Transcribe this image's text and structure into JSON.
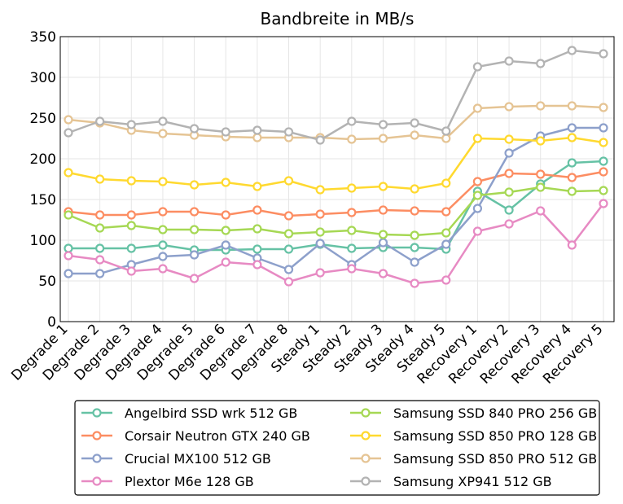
{
  "chart_data": {
    "type": "line",
    "title": "Bandbreite in MB/s",
    "xlabel": "",
    "ylabel": "",
    "ylim": [
      0,
      350
    ],
    "yticks": [
      0,
      50,
      100,
      150,
      200,
      250,
      300,
      350
    ],
    "grid": true,
    "legend_position": "bottom",
    "categories": [
      "Degrade 1",
      "Degrade 2",
      "Degrade 3",
      "Degrade 4",
      "Degrade 5",
      "Degrade 6",
      "Degrade 7",
      "Degrade 8",
      "Steady 1",
      "Steady 2",
      "Steady 3",
      "Steady 4",
      "Steady 5",
      "Recovery 1",
      "Recovery 2",
      "Recovery 3",
      "Recovery 4",
      "Recovery 5"
    ],
    "series": [
      {
        "name": "Angelbird SSD wrk 512 GB",
        "color": "#66c2a5",
        "values": [
          90,
          90,
          90,
          94,
          88,
          88,
          89,
          89,
          95,
          90,
          91,
          91,
          89,
          160,
          137,
          169,
          195,
          197
        ]
      },
      {
        "name": "Corsair Neutron GTX 240 GB",
        "color": "#fc8d62",
        "values": [
          135,
          131,
          131,
          135,
          135,
          131,
          137,
          130,
          132,
          134,
          137,
          136,
          135,
          172,
          182,
          181,
          177,
          184
        ]
      },
      {
        "name": "Crucial MX100 512 GB",
        "color": "#8da0cb",
        "values": [
          59,
          59,
          70,
          80,
          82,
          94,
          78,
          64,
          96,
          70,
          97,
          73,
          95,
          139,
          207,
          228,
          238,
          238
        ]
      },
      {
        "name": "Plextor M6e 128 GB",
        "color": "#e78ac3",
        "values": [
          81,
          76,
          62,
          65,
          53,
          73,
          70,
          49,
          60,
          65,
          59,
          47,
          51,
          111,
          120,
          136,
          94,
          145
        ]
      },
      {
        "name": "Samsung SSD 840 PRO 256 GB",
        "color": "#a6d854",
        "values": [
          131,
          115,
          118,
          113,
          113,
          112,
          114,
          108,
          110,
          112,
          107,
          106,
          109,
          155,
          159,
          165,
          160,
          161
        ]
      },
      {
        "name": "Samsung SSD 850 PRO 128 GB",
        "color": "#ffd92f",
        "values": [
          183,
          175,
          173,
          172,
          168,
          171,
          166,
          173,
          162,
          164,
          166,
          163,
          170,
          225,
          224,
          222,
          226,
          220
        ]
      },
      {
        "name": "Samsung SSD 850 PRO 512 GB",
        "color": "#e5c494",
        "values": [
          248,
          244,
          235,
          231,
          229,
          227,
          226,
          226,
          226,
          224,
          225,
          229,
          225,
          262,
          264,
          265,
          265,
          263
        ]
      },
      {
        "name": "Samsung XP941 512 GB",
        "color": "#b3b3b3",
        "values": [
          232,
          246,
          242,
          246,
          237,
          233,
          235,
          233,
          223,
          246,
          242,
          244,
          234,
          313,
          320,
          317,
          333,
          329
        ]
      }
    ]
  }
}
